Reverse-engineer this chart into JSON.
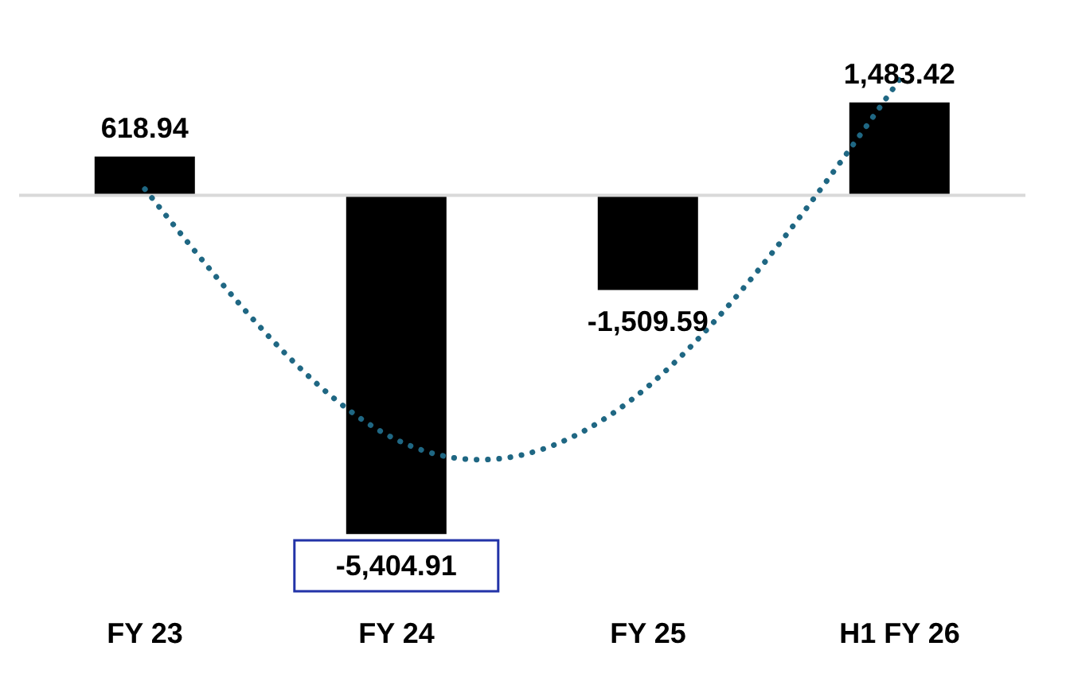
{
  "chart_data": {
    "type": "bar",
    "categories": [
      "FY 23",
      "FY 24",
      "FY 25",
      "H1 FY 26"
    ],
    "series": [
      {
        "color": "#000000",
        "values": [
          618.94,
          -5404.91,
          -1509.59,
          1483.42
        ],
        "value_labels": [
          "618.94",
          "-5,404.91",
          "-1,509.59",
          "1,483.42"
        ]
      },
      {
        "type": "line",
        "color": "#1f6783",
        "line_style": "dotted",
        "marker": "none",
        "x": [
          "FY 23",
          "FY 24",
          "FY 25",
          "H1 FY 26"
        ],
        "values": [
          100,
          -3900,
          -3050,
          1850
        ]
      }
    ]
  }
}
